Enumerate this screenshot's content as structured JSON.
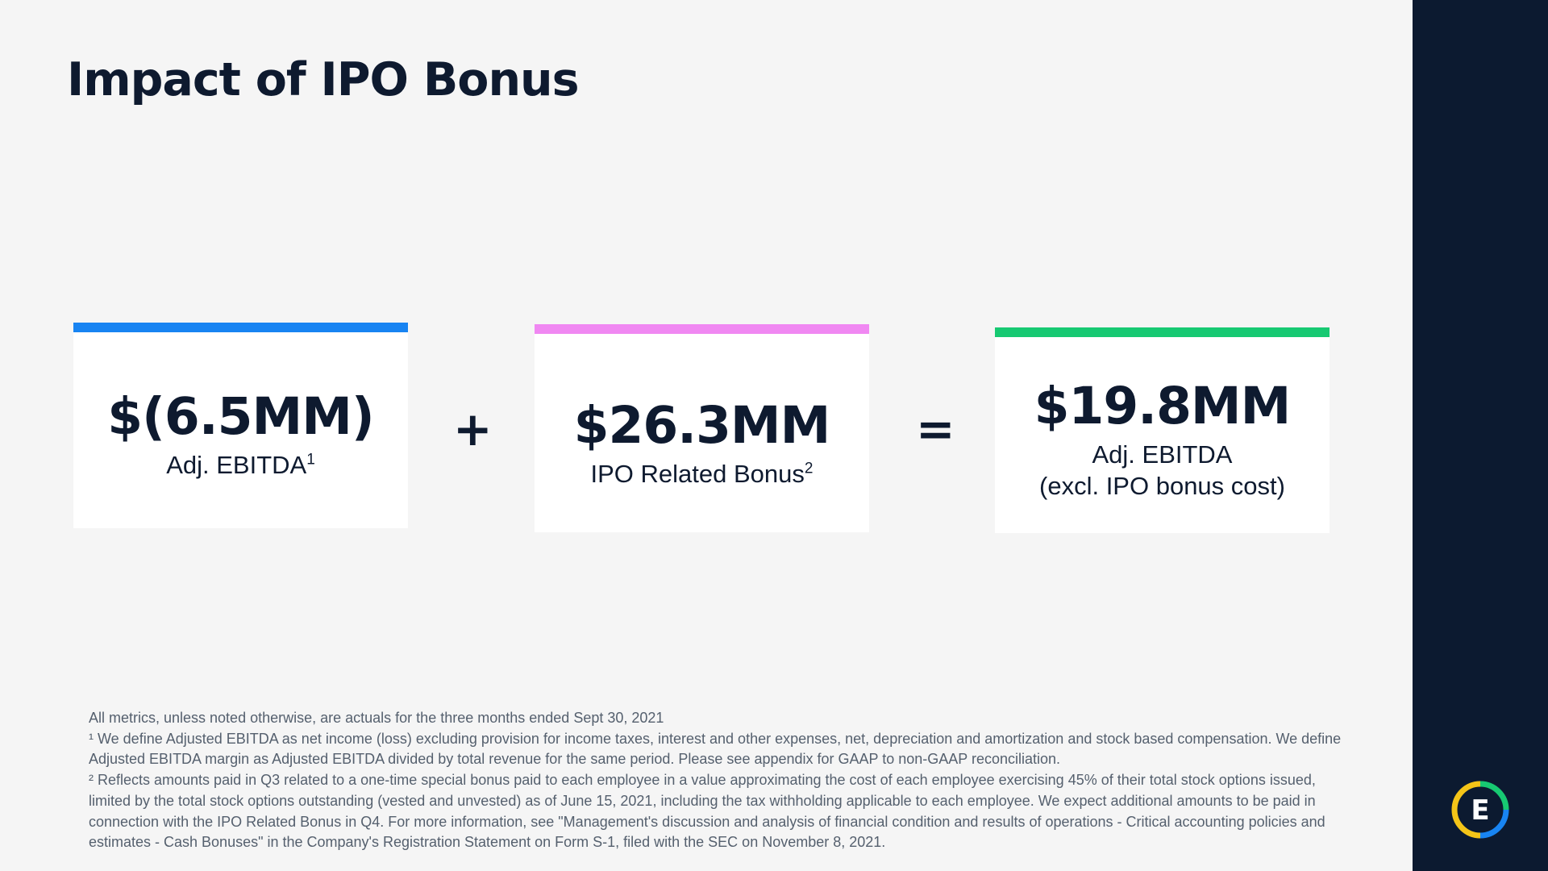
{
  "title": "Impact of IPO Bonus",
  "cards": [
    {
      "value": "$(6.5MM)",
      "label_lines": [
        "Adj. EBITDA"
      ],
      "superscript": "1",
      "accent": "#1884f2"
    },
    {
      "value": "$26.3MM",
      "label_lines": [
        "IPO Related Bonus"
      ],
      "superscript": "2",
      "accent": "#f088f2"
    },
    {
      "value": "$19.8MM",
      "label_lines": [
        "Adj. EBITDA",
        "(excl. IPO bonus cost)"
      ],
      "superscript": "",
      "accent": "#17c972"
    }
  ],
  "operators": {
    "plus": "+",
    "equals": "="
  },
  "footnotes": {
    "intro": "All metrics, unless noted otherwise, are actuals for the three months ended Sept 30, 2021",
    "note1": "¹ We define Adjusted EBITDA as net income (loss) excluding provision for income taxes, interest and other expenses, net, depreciation and amortization and stock based compensation. We define Adjusted EBITDA margin as Adjusted EBITDA divided by total revenue for the same period. Please see appendix for GAAP to non-GAAP reconciliation.",
    "note2": "² Reflects amounts paid in Q3 related to a one-time special bonus paid to each employee in a value approximating the cost of each employee exercising 45% of their total stock options issued, limited by the total stock options outstanding (vested and unvested)  as of June 15, 2021, including the tax withholding applicable to each employee. We expect additional amounts to be paid in connection with the IPO Related Bonus in Q4.  For more information, see \"Management's discussion and analysis of financial condition and results of operations - Critical accounting policies and estimates - Cash Bonuses\" in the Company's Registration Statement on Form S-1, filed with the SEC on November 8, 2021."
  },
  "logo": {
    "letter": "E",
    "icon": "company-logo-icon",
    "colors": [
      "#f5c518",
      "#17c972",
      "#1884f2"
    ]
  },
  "colors": {
    "sidebar": "#0c1a30",
    "text": "#0e1a2f",
    "background": "#f5f5f5"
  }
}
